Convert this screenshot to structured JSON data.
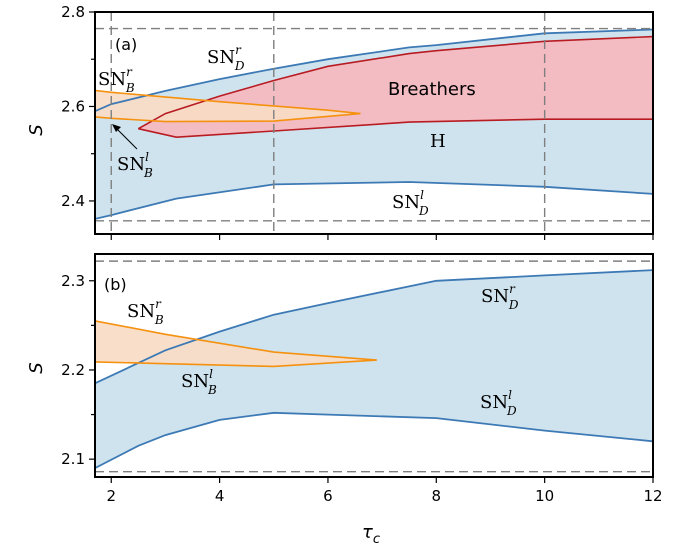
{
  "chart_data": [
    {
      "type": "area",
      "panel": "(a)",
      "xlabel": "τ_c",
      "ylabel": "S",
      "xlim": [
        1.7,
        12
      ],
      "ylim": [
        2.33,
        2.8
      ],
      "yticks": [
        2.4,
        2.5,
        2.6,
        2.7,
        2.8
      ],
      "ytick_labels": [
        "2.4",
        "",
        "2.6",
        "",
        "2.8"
      ],
      "xticks": [
        2,
        4,
        6,
        8,
        10,
        12
      ],
      "grid": "off",
      "colors": {
        "sn_d": "#3d7ab5",
        "sn_d_fill": "#cfe3ee",
        "breathers": "#b81c22",
        "breathers_fill": "#f3bcc3",
        "sn_b": "#f5910f",
        "sn_b_fill": "#f8dcc4",
        "dashed": "#7f7f7f"
      },
      "dashed_h": [
        2.358,
        2.765
      ],
      "dashed_v": [
        2,
        5,
        10
      ],
      "series": [
        {
          "key": "SN_D_r",
          "x": [
            1.7,
            2,
            3,
            4,
            5,
            6,
            7.5,
            8,
            10,
            12
          ],
          "values": [
            2.59,
            2.605,
            2.633,
            2.658,
            2.68,
            2.7,
            2.725,
            2.73,
            2.755,
            2.763
          ]
        },
        {
          "key": "SN_D_l",
          "x": [
            1.7,
            2,
            3.2,
            5,
            7.5,
            10,
            12
          ],
          "values": [
            2.362,
            2.37,
            2.405,
            2.435,
            2.44,
            2.43,
            2.415
          ]
        },
        {
          "key": "Breathers_upper",
          "x": [
            2.5,
            3,
            4,
            5,
            6,
            7.5,
            8,
            10,
            12
          ],
          "values": [
            2.553,
            2.585,
            2.622,
            2.655,
            2.685,
            2.712,
            2.718,
            2.738,
            2.748
          ]
        },
        {
          "key": "Breathers_lower_H",
          "x": [
            2.5,
            3.2,
            5,
            7.5,
            10,
            12
          ],
          "values": [
            2.553,
            2.535,
            2.548,
            2.567,
            2.573,
            2.573
          ]
        },
        {
          "key": "SN_B_r",
          "x": [
            1.7,
            2,
            4,
            6,
            6.6
          ],
          "values": [
            2.634,
            2.63,
            2.61,
            2.592,
            2.585
          ]
        },
        {
          "key": "SN_B_l",
          "x": [
            1.7,
            2,
            3,
            5,
            6.6
          ],
          "values": [
            2.578,
            2.575,
            2.568,
            2.569,
            2.585
          ]
        }
      ],
      "labels": {
        "panel_tag": "(a)",
        "sn_d_r": {
          "base": "SN",
          "sup": "r",
          "sub": "D"
        },
        "sn_b_r": {
          "base": "SN",
          "sup": "r",
          "sub": "B"
        },
        "sn_b_l": {
          "base": "SN",
          "sup": "l",
          "sub": "B"
        },
        "sn_d_l": {
          "base": "SN",
          "sup": "l",
          "sub": "D"
        },
        "breathers": "Breathers",
        "h": "H"
      }
    },
    {
      "type": "area",
      "panel": "(b)",
      "xlabel": "τ_c",
      "ylabel": "S",
      "xlim": [
        1.7,
        12
      ],
      "ylim": [
        2.08,
        2.33
      ],
      "yticks": [
        2.1,
        2.15,
        2.2,
        2.25,
        2.3
      ],
      "ytick_labels": [
        "2.1",
        "",
        "2.2",
        "",
        "2.3"
      ],
      "xticks": [
        2,
        4,
        6,
        8,
        10,
        12
      ],
      "xtick_labels": [
        "2",
        "4",
        "6",
        "8",
        "10",
        "12"
      ],
      "grid": "off",
      "dashed_h": [
        2.086,
        2.322
      ],
      "series": [
        {
          "key": "SN_D_r",
          "x": [
            1.7,
            3,
            4,
            5,
            6,
            8,
            10,
            12
          ],
          "values": [
            2.185,
            2.222,
            2.243,
            2.262,
            2.275,
            2.3,
            2.306,
            2.312
          ]
        },
        {
          "key": "SN_D_l",
          "x": [
            1.7,
            2.5,
            3,
            4,
            5,
            6,
            8,
            10,
            12
          ],
          "values": [
            2.09,
            2.115,
            2.127,
            2.144,
            2.152,
            2.15,
            2.146,
            2.132,
            2.12
          ]
        },
        {
          "key": "SN_B_r",
          "x": [
            1.7,
            3,
            5,
            6.9
          ],
          "values": [
            2.255,
            2.24,
            2.22,
            2.211
          ]
        },
        {
          "key": "SN_B_l",
          "x": [
            1.7,
            3,
            5,
            6.9
          ],
          "values": [
            2.209,
            2.207,
            2.204,
            2.211
          ]
        }
      ],
      "labels": {
        "panel_tag": "(b)",
        "sn_b_r": {
          "base": "SN",
          "sup": "r",
          "sub": "B"
        },
        "sn_d_r": {
          "base": "SN",
          "sup": "r",
          "sub": "D"
        },
        "sn_b_l": {
          "base": "SN",
          "sup": "l",
          "sub": "B"
        },
        "sn_d_l": {
          "base": "SN",
          "sup": "l",
          "sub": "D"
        }
      }
    }
  ],
  "axis_text": {
    "ylabel": "S",
    "xlabel_main": "τ",
    "xlabel_sub": "c"
  }
}
